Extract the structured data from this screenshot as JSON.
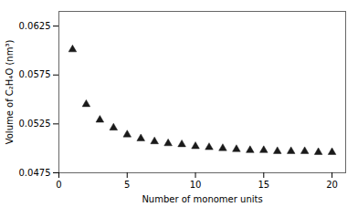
{
  "chart_data": {
    "type": "scatter",
    "x": [
      1,
      2,
      3,
      4,
      5,
      6,
      7,
      8,
      9,
      10,
      11,
      12,
      13,
      14,
      15,
      16,
      17,
      18,
      19,
      20
    ],
    "values": [
      0.0601,
      0.0545,
      0.0529,
      0.0521,
      0.0514,
      0.051,
      0.0507,
      0.0505,
      0.0504,
      0.0502,
      0.0501,
      0.05,
      0.0499,
      0.0498,
      0.0498,
      0.0497,
      0.0497,
      0.0497,
      0.0496,
      0.0496
    ],
    "color": "#1a1a1a",
    "marker": "triangle",
    "xlabel": "Number of monomer units",
    "ylabel": "Volume of C₂H₄O (nm³)",
    "xlim": [
      0,
      21
    ],
    "ylim": [
      0.0475,
      0.064
    ],
    "xticks": [
      0,
      5,
      10,
      15,
      20
    ],
    "yticks": [
      0.0475,
      0.0525,
      0.0575,
      0.0625
    ]
  }
}
